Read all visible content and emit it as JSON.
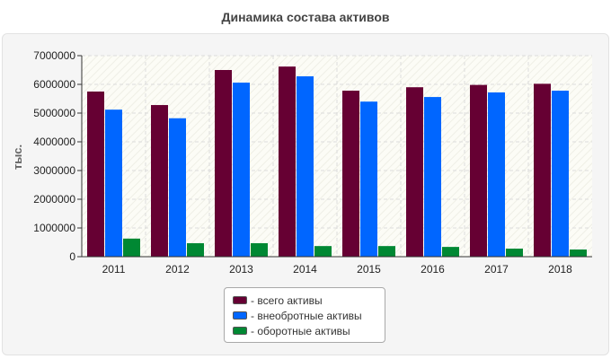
{
  "chart_data": {
    "type": "bar",
    "title": "Динамика состава активов",
    "ylabel": "тыс.",
    "xlabel": "",
    "categories": [
      "2011",
      "2012",
      "2013",
      "2014",
      "2015",
      "2016",
      "2017",
      "2018"
    ],
    "ylim": [
      0,
      7000000
    ],
    "yticks": [
      0,
      1000000,
      2000000,
      3000000,
      4000000,
      5000000,
      6000000,
      7000000
    ],
    "grid": true,
    "legend_position": "bottom-center",
    "series": [
      {
        "name": "- всего активы",
        "color": "#660033",
        "values": [
          5750000,
          5280000,
          6500000,
          6620000,
          5780000,
          5900000,
          5980000,
          6020000
        ]
      },
      {
        "name": "- внеобротные активы",
        "color": "#0066ff",
        "values": [
          5120000,
          4820000,
          6060000,
          6280000,
          5400000,
          5560000,
          5720000,
          5780000
        ]
      },
      {
        "name": "- оборотные активы",
        "color": "#008833",
        "values": [
          630000,
          470000,
          470000,
          370000,
          370000,
          340000,
          280000,
          250000
        ]
      }
    ]
  }
}
